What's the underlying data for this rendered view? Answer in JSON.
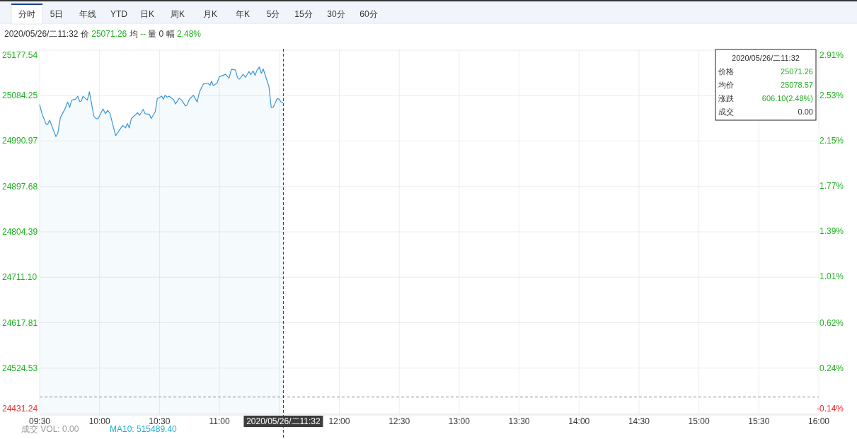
{
  "chart_data": {
    "type": "area",
    "annotations": [
      "分时",
      "5日",
      "年线",
      "YTD",
      "日K",
      "周K",
      "月K",
      "年K",
      "5分",
      "15分",
      "30分",
      "60分",
      "2020/05/26/二11:32 价 25071.26 均 -- 量 0 幅 2.48%",
      "2020/05/26/二11:32",
      "价格 25071.26",
      "均价 25078.57",
      "涨跌 606.10(2.48%)",
      "成交 0.00",
      "成交 VOL: 0.00",
      "MA10: 515489.40",
      "2020/05/26/二11:32"
    ],
    "x": [
      9.5,
      9.52,
      9.553,
      9.567,
      9.583,
      9.636,
      9.652,
      9.673,
      9.707,
      9.734,
      9.75,
      9.768,
      9.801,
      9.819,
      9.835,
      9.848,
      9.862,
      9.898,
      9.915,
      9.953,
      9.972,
      9.988,
      10.029,
      10.049,
      10.067,
      10.086,
      10.134,
      10.193,
      10.216,
      10.232,
      10.248,
      10.265,
      10.317,
      10.334,
      10.364,
      10.381,
      10.415,
      10.431,
      10.464,
      10.482,
      10.519,
      10.533,
      10.547,
      10.563,
      10.58,
      10.618,
      10.633,
      10.665,
      10.685,
      10.716,
      10.73,
      10.75,
      10.783,
      10.815,
      10.832,
      10.866,
      10.905,
      10.921,
      10.934,
      10.948,
      10.98,
      10.999,
      11.051,
      11.08,
      11.1,
      11.133,
      11.151,
      11.167,
      11.198,
      11.218,
      11.247,
      11.261,
      11.281,
      11.297,
      11.314,
      11.332,
      11.35,
      11.365,
      11.413,
      11.432,
      11.448,
      11.481,
      11.497,
      11.515,
      11.531
    ],
    "series": [
      {
        "color": "#3a96d8",
        "values": [
          25066,
          25047,
          25026,
          25025,
          25034,
          25000,
          25007,
          25039,
          25055,
          25071,
          25060,
          25075,
          25077,
          25083,
          25072,
          25073,
          25083,
          25075,
          25092,
          25042,
          25037,
          25037,
          25057,
          25047,
          25054,
          25048,
          25002,
          25023,
          25018,
          25027,
          25018,
          25037,
          25049,
          25044,
          25056,
          25047,
          25046,
          25037,
          25051,
          25078,
          25083,
          25077,
          25085,
          25081,
          25083,
          25076,
          25067,
          25079,
          25075,
          25063,
          25065,
          25077,
          25085,
          25071,
          25091,
          25108,
          25110,
          25105,
          25114,
          25105,
          25110,
          25123,
          25128,
          25120,
          25138,
          25137,
          25121,
          25118,
          25128,
          25122,
          25134,
          25127,
          25135,
          25126,
          25137,
          25143,
          25130,
          25139,
          25103,
          25060,
          25060,
          25078,
          25077,
          25071,
          25070
        ]
      }
    ],
    "xlim": [
      9.5,
      16
    ],
    "xticks": [
      {
        "value": 9.5,
        "label": "09:30"
      },
      {
        "value": 10,
        "label": "10:00"
      },
      {
        "value": 10.5,
        "label": "10:30"
      },
      {
        "value": 11,
        "label": "11:00"
      },
      {
        "value": 11.5,
        "label": null
      },
      {
        "value": 12,
        "label": "12:00"
      },
      {
        "value": 12.5,
        "label": "12:30"
      },
      {
        "value": 13,
        "label": "13:00"
      },
      {
        "value": 13.5,
        "label": "13:30"
      },
      {
        "value": 14,
        "label": "14:00"
      },
      {
        "value": 14.5,
        "label": "14:30"
      },
      {
        "value": 15,
        "label": "15:00"
      },
      {
        "value": 15.5,
        "label": "15:30"
      },
      {
        "value": 16,
        "label": "16:00"
      }
    ],
    "ylim": [
      24431.24,
      25177.54
    ],
    "yticks": [
      24431.24,
      24524.53,
      24617.81,
      {
        "value": 24711.1,
        "label": "24711.10"
      },
      24804.39,
      24897.68,
      24990.97,
      25084.25,
      25177.54
    ],
    "y2lim": [
      -0.14,
      2.91
    ],
    "y2ticks": [
      {
        "value": -0.14,
        "label": "-0.14%"
      },
      {
        "value": 0.24,
        "label": "0.24%"
      },
      {
        "value": 0.62,
        "label": "0.62%"
      },
      {
        "value": 1.01,
        "label": "1.01%"
      },
      {
        "value": 1.39,
        "label": "1.39%"
      },
      {
        "value": 1.77,
        "label": "1.77%"
      },
      {
        "value": 2.15,
        "label": "2.15%"
      },
      {
        "value": 2.53,
        "label": "2.53%"
      },
      {
        "value": 2.91,
        "label": "2.91%"
      }
    ],
    "ref_lines": [
      {
        "axis": "y",
        "value": 24465.16,
        "color": "#888888",
        "line_style": "dashed"
      },
      {
        "axis": "x",
        "value": 11.5333,
        "color": "#333333",
        "line_style": "dashed"
      }
    ],
    "grid": true
  }
}
